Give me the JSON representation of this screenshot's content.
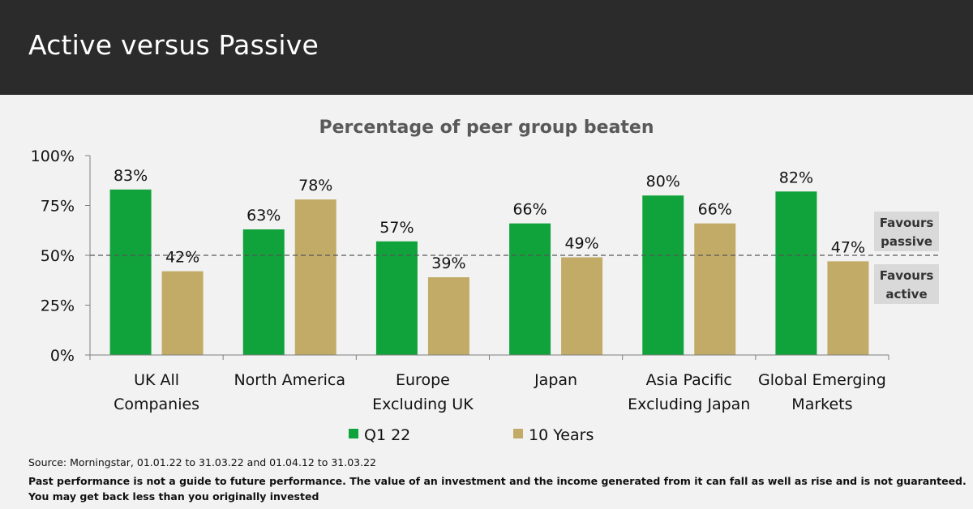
{
  "header": {
    "title": "Active versus Passive"
  },
  "chart_data": {
    "type": "bar",
    "title": "Percentage of peer group beaten",
    "categories": [
      [
        "UK All",
        "Companies"
      ],
      [
        "North America"
      ],
      [
        "Europe",
        "Excluding UK"
      ],
      [
        "Japan"
      ],
      [
        "Asia Pacific",
        "Excluding Japan"
      ],
      [
        "Global Emerging",
        "Markets"
      ]
    ],
    "series": [
      {
        "name": "Q1 22",
        "color": "#11a33b",
        "values": [
          83,
          63,
          57,
          66,
          80,
          82
        ]
      },
      {
        "name": "10 Years",
        "color": "#c2ab67",
        "values": [
          42,
          78,
          39,
          49,
          66,
          47
        ]
      }
    ],
    "value_suffix": "%",
    "ylim": [
      0,
      100
    ],
    "yticks": [
      "0%",
      "25%",
      "50%",
      "75%",
      "100%"
    ],
    "threshold": 50,
    "annotations": [
      {
        "text": [
          "Favours",
          "passive"
        ],
        "position": "above-threshold"
      },
      {
        "text": [
          "Favours",
          "active"
        ],
        "position": "below-threshold"
      }
    ],
    "legend_position": "bottom"
  },
  "footer": {
    "source": "Source: Morningstar, 01.01.22 to 31.03.22 and 01.04.12 to 31.03.22",
    "disclaimer_lines": [
      "Past performance is not a guide to future performance. The value of an investment and the income generated from it can fall as well as rise and is not guaranteed.",
      "You may get back less than you originally invested"
    ]
  }
}
